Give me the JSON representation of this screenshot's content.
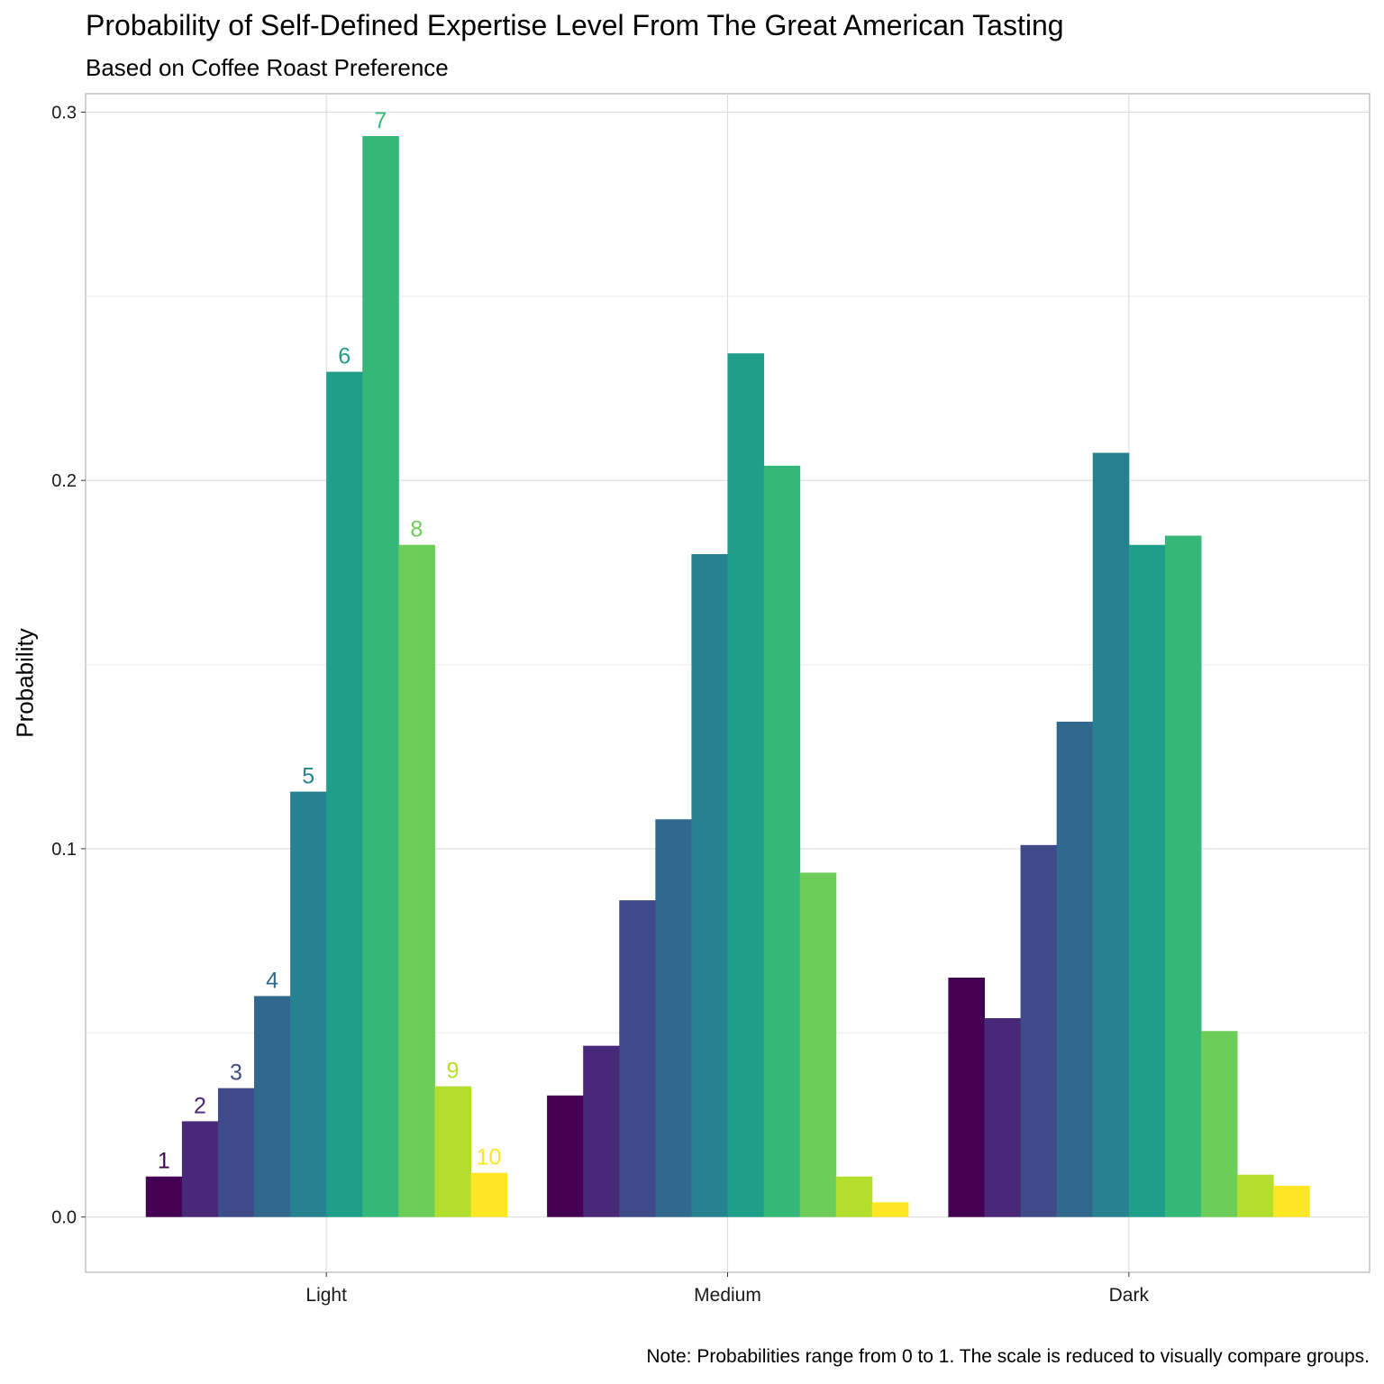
{
  "title": "Probability of Self-Defined Expertise Level From The Great American Tasting",
  "subtitle": "Based on Coffee Roast Preference",
  "caption": "Note: Probabilities range from 0 to 1. The scale is reduced to visually compare groups.",
  "chart_data": {
    "type": "bar",
    "title": "Probability of Self-Defined Expertise Level From The Great American Tasting",
    "subtitle": "Based on Coffee Roast Preference",
    "xlabel": "",
    "ylabel": "Probability",
    "ylim": [
      -0.015,
      0.305
    ],
    "yticks": [
      "0.0",
      "0.1",
      "0.2",
      "0.3"
    ],
    "ytick_values": [
      0.0,
      0.1,
      0.2,
      0.3
    ],
    "grid": true,
    "legend": "none",
    "categories": [
      "Light",
      "Medium",
      "Dark"
    ],
    "series": [
      {
        "name": "1",
        "color": "#440154",
        "values": [
          0.011,
          0.033,
          0.065
        ]
      },
      {
        "name": "2",
        "color": "#482878",
        "values": [
          0.026,
          0.0465,
          0.054
        ]
      },
      {
        "name": "3",
        "color": "#3E4A89",
        "values": [
          0.035,
          0.086,
          0.101
        ]
      },
      {
        "name": "4",
        "color": "#31688E",
        "values": [
          0.06,
          0.108,
          0.1345
        ]
      },
      {
        "name": "5",
        "color": "#26828E",
        "values": [
          0.1155,
          0.18,
          0.2075
        ]
      },
      {
        "name": "6",
        "color": "#1F9E89",
        "values": [
          0.2295,
          0.2345,
          0.1825
        ]
      },
      {
        "name": "7",
        "color": "#35B779",
        "values": [
          0.2935,
          0.204,
          0.185
        ]
      },
      {
        "name": "8",
        "color": "#6DCD59",
        "values": [
          0.1825,
          0.0935,
          0.0505
        ]
      },
      {
        "name": "9",
        "color": "#B4DE2C",
        "values": [
          0.0355,
          0.011,
          0.0115
        ]
      },
      {
        "name": "10",
        "color": "#FDE725",
        "values": [
          0.012,
          0.004,
          0.0085
        ]
      }
    ],
    "bar_labels_group": "Light"
  }
}
